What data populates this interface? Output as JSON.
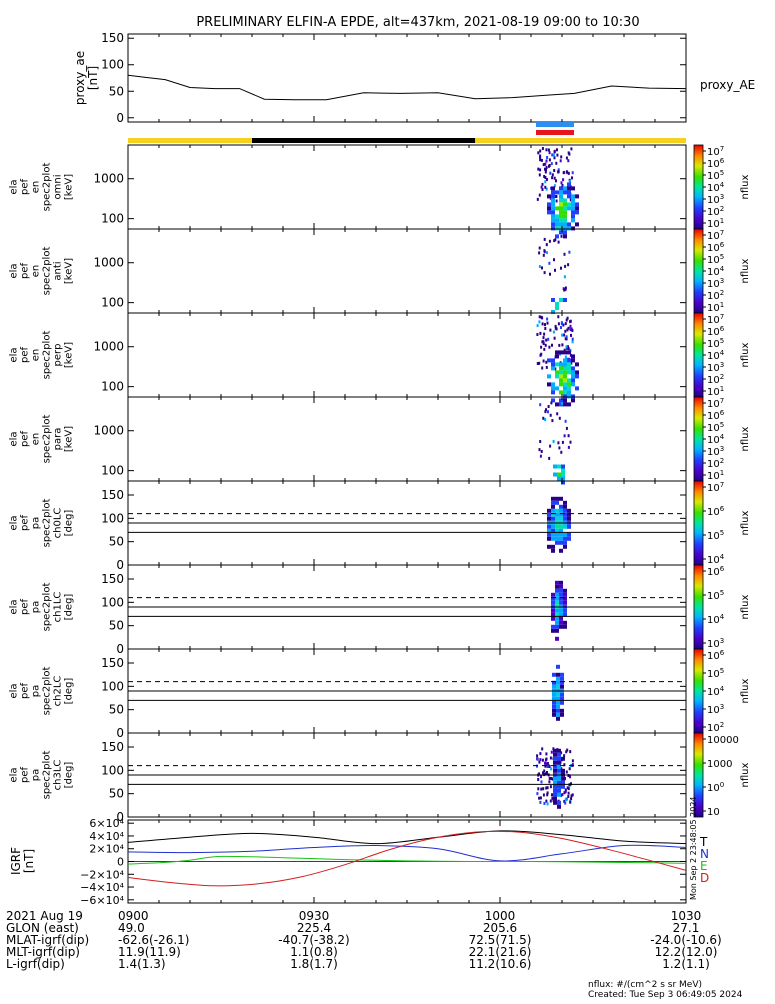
{
  "title": "PRELIMINARY ELFIN-A EPDE, alt=437km, 2021-08-19 09:00 to 10:30",
  "colors": {
    "bar_yellow": "#f6d21e",
    "bar_black": "#000000",
    "bar_blue": "#2b8ff0",
    "bar_red": "#e8141c",
    "grf_N": "#1f2fd1",
    "grf_E": "#17c317",
    "grf_D": "#d11f1f",
    "grf_T": "#000000"
  },
  "chart_data": [
    {
      "type": "line",
      "panel": "proxy_ae",
      "ylabel": [
        "proxy_ae",
        "[nT]"
      ],
      "legend": "proxy_AE",
      "ylim": [
        -8,
        158
      ],
      "yticks": [
        "0",
        "50",
        "100",
        "150"
      ],
      "x_min": [
        0,
        3,
        6,
        10,
        14,
        18,
        22,
        27,
        32,
        38,
        44,
        50,
        56,
        62,
        68,
        72,
        78,
        84,
        90
      ],
      "values": [
        80,
        76,
        72,
        57,
        55,
        55,
        35,
        34,
        34,
        47,
        46,
        47,
        36,
        38,
        43,
        46,
        60,
        56,
        55
      ]
    },
    {
      "type": "heatmap",
      "panel": "en_spectrogram",
      "labels": [
        [
          "ela",
          "pef",
          "en",
          "spec2plot",
          "omni",
          "[keV]"
        ],
        [
          "ela",
          "pef",
          "en",
          "spec2plot",
          "anti",
          "[keV]"
        ],
        [
          "ela",
          "pef",
          "en",
          "spec2plot",
          "perp",
          "[keV]"
        ],
        [
          "ela",
          "pef",
          "en",
          "spec2plot",
          "para",
          "[keV]"
        ]
      ],
      "yticks": [
        "100",
        "1000"
      ],
      "ylim_keV": [
        55,
        7000
      ],
      "colorbar_label": "nflux",
      "colorbar_ticks": [
        "101",
        "102",
        "103",
        "104",
        "105",
        "106",
        "107"
      ]
    },
    {
      "type": "heatmap",
      "panel": "pa_spectrogram",
      "labels": [
        [
          "ela",
          "pef",
          "pa",
          "spec2plot",
          "ch0LC",
          "[deg]"
        ],
        [
          "ela",
          "pef",
          "pa",
          "spec2plot",
          "ch1LC",
          "[deg]"
        ],
        [
          "ela",
          "pef",
          "pa",
          "spec2plot",
          "ch2LC",
          "[deg]"
        ],
        [
          "ela",
          "pef",
          "pa",
          "spec2plot",
          "ch3LC",
          "[deg]"
        ]
      ],
      "yticks": [
        "0",
        "50",
        "100",
        "150"
      ],
      "ylim_deg": [
        0,
        180
      ],
      "colorbar_label": "nflux",
      "colorbar_ticks": [
        [
          "104",
          "105",
          "106",
          "107"
        ],
        [
          "103",
          "104",
          "105",
          "106"
        ],
        [
          "102",
          "103",
          "104",
          "105",
          "106"
        ],
        [
          "10",
          "100",
          "1000",
          "10000"
        ]
      ]
    },
    {
      "type": "line",
      "panel": "grf",
      "ylabel": [
        "IGRF",
        "[nT]"
      ],
      "yticks": [
        "6×10⁴",
        "4×10⁴",
        "2×10⁴",
        "0",
        "−2×10⁴",
        "−4×10⁴",
        "−6×10⁴"
      ],
      "ylim": [
        -65000,
        65000
      ],
      "series": [
        {
          "name": "T",
          "x_min": [
            0,
            10,
            20,
            30,
            40,
            50,
            60,
            70,
            80,
            90
          ],
          "values": [
            30000,
            38000,
            44000,
            38000,
            28000,
            38000,
            48000,
            42000,
            32000,
            28000
          ]
        },
        {
          "name": "N",
          "x_min": [
            0,
            10,
            20,
            30,
            40,
            50,
            60,
            70,
            80,
            90
          ],
          "values": [
            15000,
            14000,
            16000,
            22000,
            25000,
            20000,
            1000,
            12000,
            25000,
            22000
          ]
        },
        {
          "name": "E",
          "x_min": [
            0,
            5,
            10,
            15,
            25,
            35,
            45,
            55,
            65,
            75,
            85,
            90
          ],
          "values": [
            -4000,
            -2000,
            2000,
            8000,
            6000,
            3000,
            1000,
            0,
            0,
            -1000,
            -2000,
            -3000
          ]
        },
        {
          "name": "D",
          "x_min": [
            0,
            7,
            14,
            21,
            28,
            35,
            42,
            49,
            56,
            63,
            70,
            77,
            84,
            90
          ],
          "values": [
            -25000,
            -33000,
            -38000,
            -35000,
            -24000,
            -5000,
            18000,
            36000,
            46000,
            46000,
            36000,
            20000,
            2000,
            -14000
          ]
        }
      ]
    }
  ],
  "xaxis": {
    "tick_labels": [
      "0900",
      "0930",
      "1000",
      "1030"
    ],
    "rows": [
      {
        "label": "2021 Aug 19",
        "values": [
          "0900",
          "0930",
          "1000",
          "1030"
        ]
      },
      {
        "label": "GLON (east)",
        "values": [
          "49.0",
          "225.4",
          "205.6",
          "27.1"
        ]
      },
      {
        "label": "MLAT-igrf(dip)",
        "values": [
          "-62.6(-26.1)",
          "-40.7(-38.2)",
          "72.5(71.5)",
          "-24.0(-10.6)"
        ]
      },
      {
        "label": "MLT-igrf(dip)",
        "values": [
          "11.9(11.9)",
          "1.1(0.8)",
          "22.1(21.6)",
          "12.2(12.0)"
        ]
      },
      {
        "label": "L-igrf(dip)",
        "values": [
          "1.4(1.3)",
          "1.8(1.7)",
          "11.2(10.6)",
          "1.2(1.1)"
        ]
      }
    ]
  },
  "footer": {
    "units": "nflux: #/(cm^2 s sr MeV)",
    "created": "Created: Tue Sep  3 06:49:05 2024",
    "side_stamp": "Mon Sep  2 23:48:05 2024"
  },
  "grf_legend": [
    "T",
    "N",
    "E",
    "D"
  ]
}
